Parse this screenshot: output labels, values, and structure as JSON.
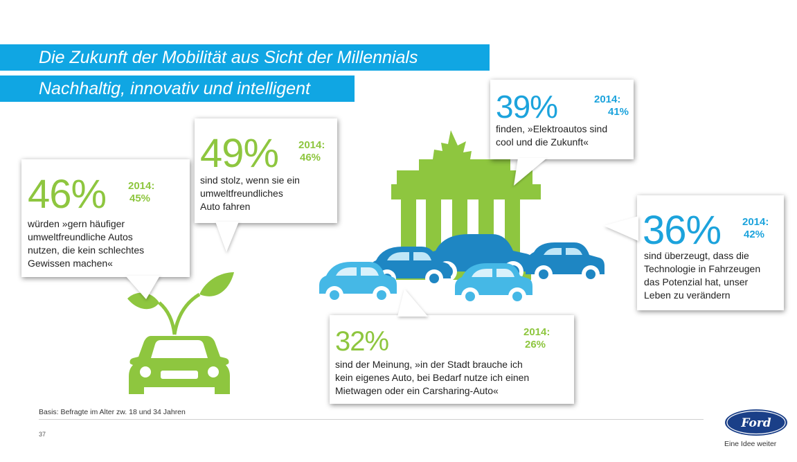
{
  "header": {
    "title": "Die Zukunft der Mobilität aus Sicht der Millennials",
    "subtitle": "Nachhaltig, innovativ und intelligent"
  },
  "stats": [
    {
      "percent": "46%",
      "year_label": "2014:",
      "year_value": "45%",
      "lines": [
        "würden »gern häufiger",
        "umweltfreundliche Autos",
        "nutzen, die kein schlechtes",
        "Gewissen machen«"
      ]
    },
    {
      "percent": "49%",
      "year_label": "2014:",
      "year_value": "46%",
      "lines": [
        "sind stolz, wenn sie ein",
        "umweltfreundliches",
        "Auto fahren"
      ]
    },
    {
      "percent": "39%",
      "year_label": "2014:",
      "year_value": "41%",
      "lines": [
        "finden, »Elektroautos sind",
        "cool und die Zukunft«"
      ]
    },
    {
      "percent": "36%",
      "year_label": "2014:",
      "year_value": "42%",
      "lines": [
        "sind überzeugt, dass die",
        "Technologie in Fahrzeugen",
        "das Potenzial hat, unser",
        "Leben zu verändern"
      ]
    },
    {
      "percent": "32%",
      "year_label": "2014:",
      "year_value": "26%",
      "lines": [
        "sind der Meinung, »in der Stadt brauche ich",
        "kein eigenes Auto, bei Bedarf nutze ich einen",
        "Mietwagen oder ein Carsharing-Auto«"
      ]
    }
  ],
  "footer": {
    "basis": "Basis: Befragte im Alter zw. 18 und 34 Jahren",
    "page_number": "37",
    "brand_logo_text": "Ford",
    "tagline": "Eine Idee weiter"
  },
  "colors": {
    "accent_blue": "#10a6e3",
    "green": "#8ec63f",
    "stat_blue": "#1ca3dc",
    "car_light_blue": "#45b8e6",
    "car_dark_blue": "#1e86c3",
    "ford_blue": "#1a3f88"
  },
  "icons": [
    "leaf-sprout-icon",
    "car-front-icon",
    "brandenburg-gate-icon",
    "car-side-icon",
    "ford-logo"
  ]
}
